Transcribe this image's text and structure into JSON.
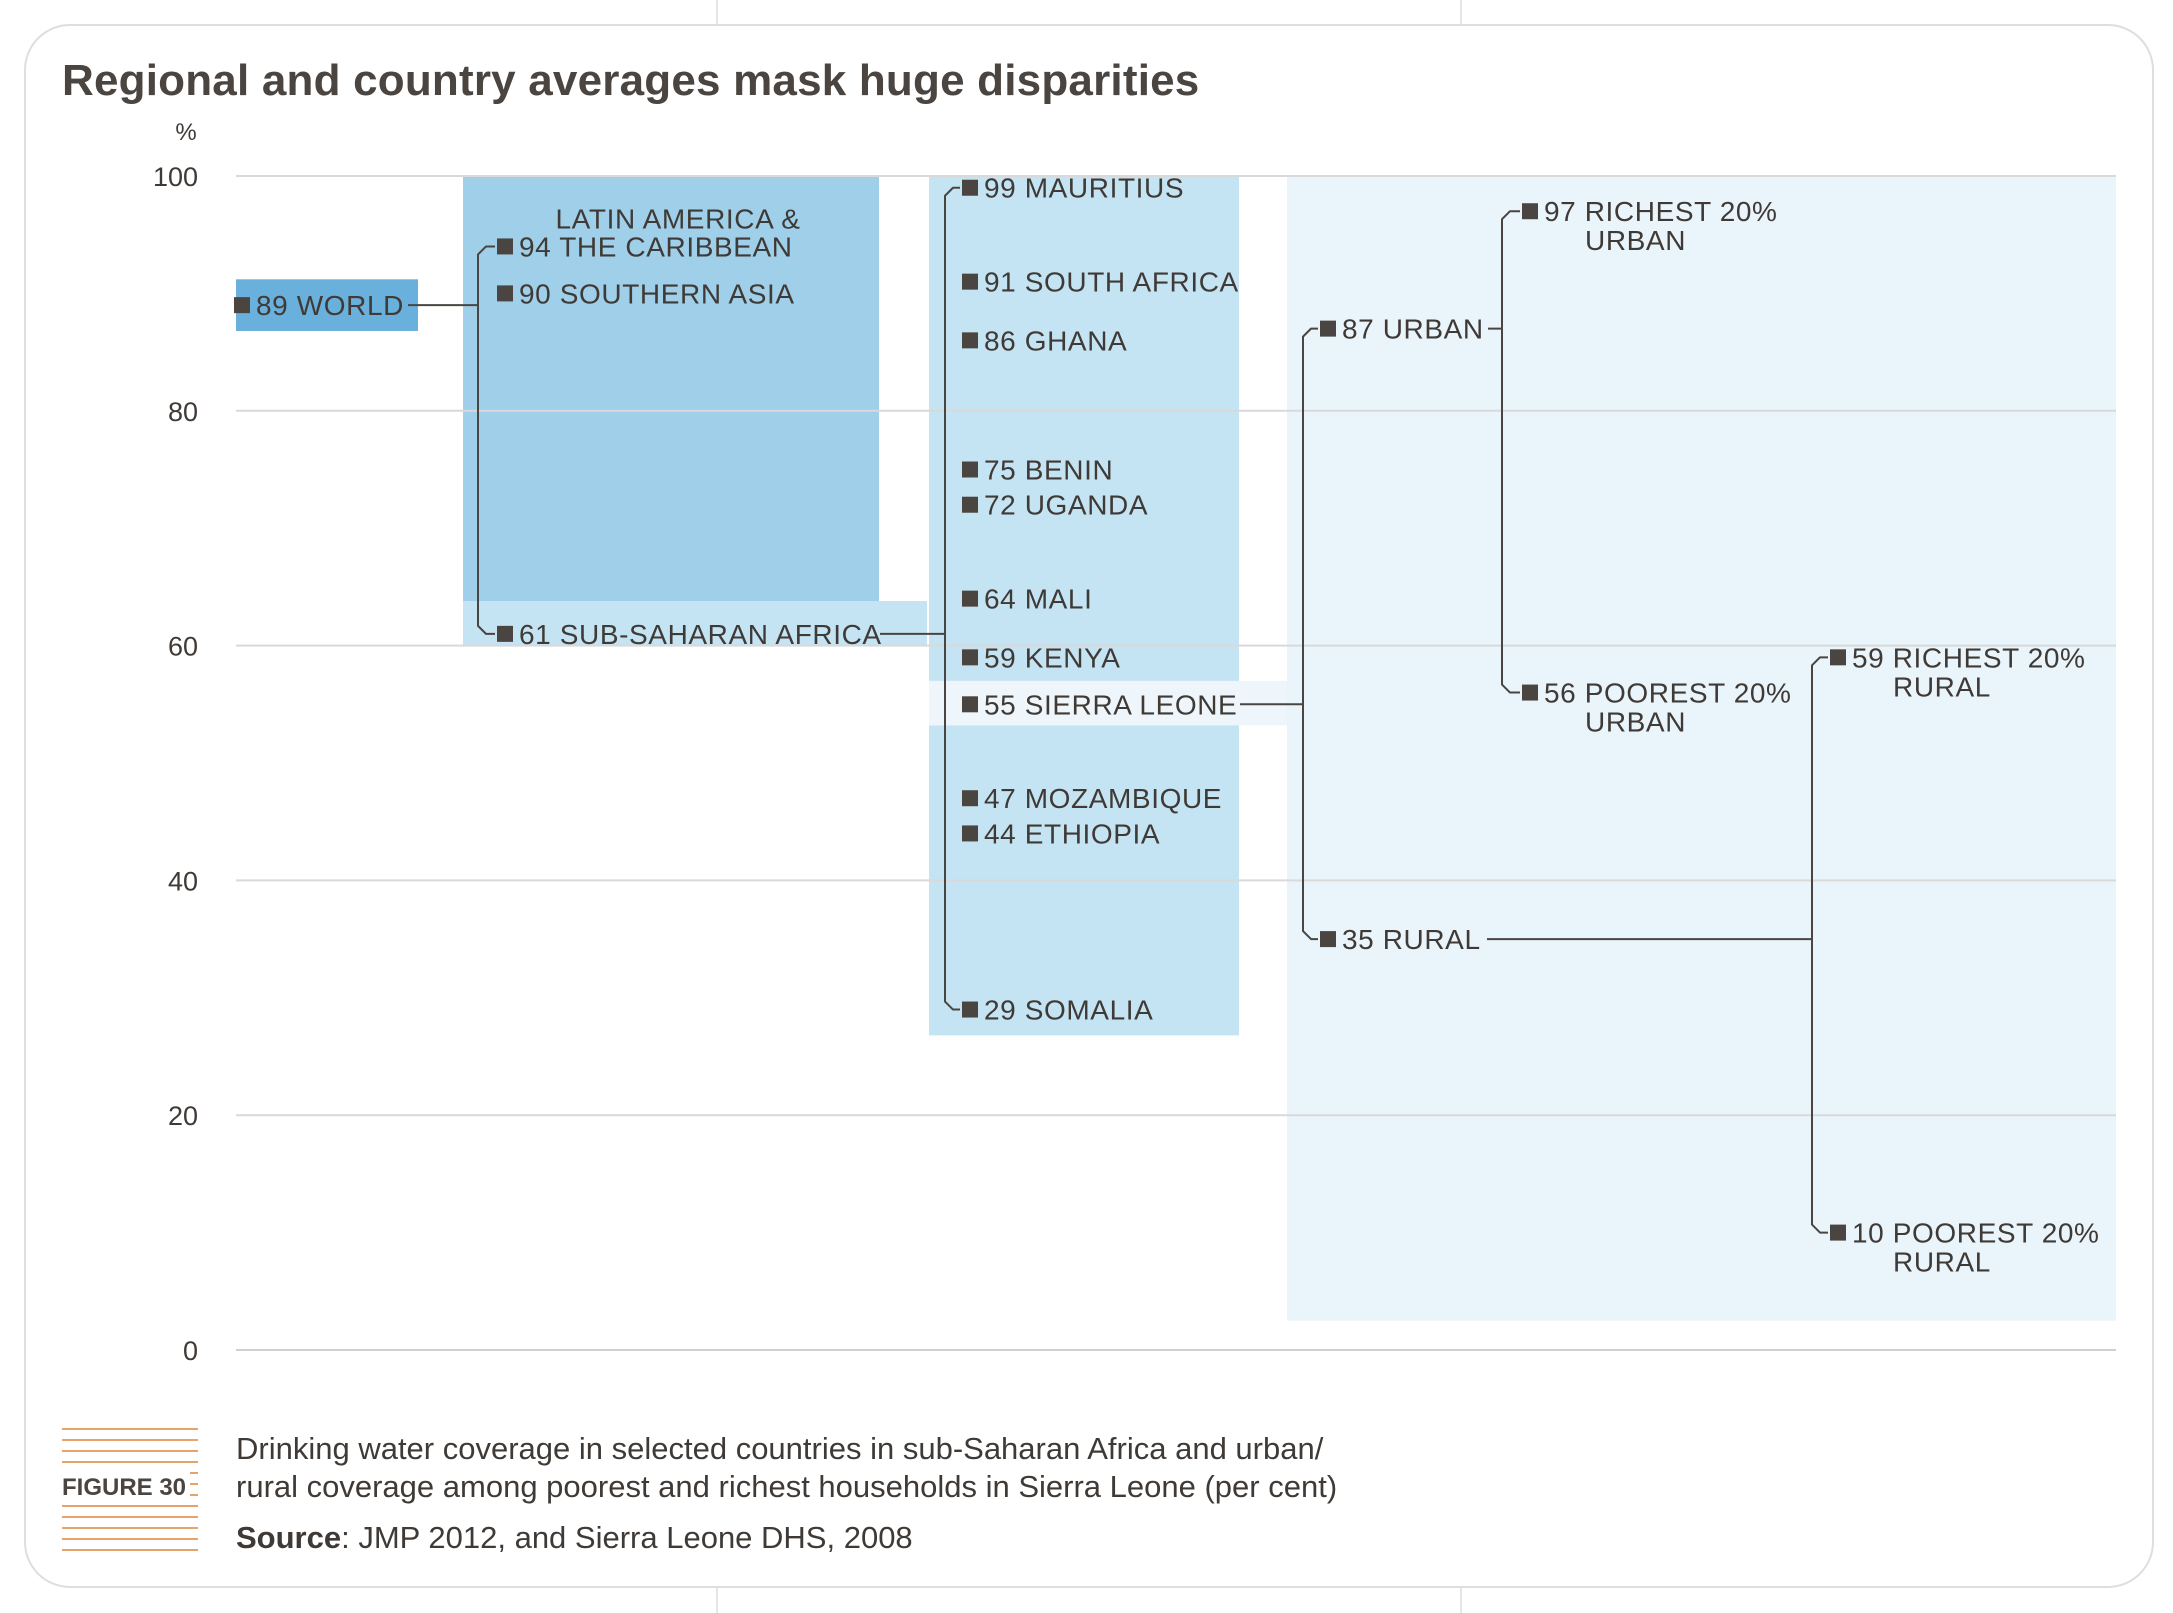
{
  "title": "Regional and country averages mask huge disparities",
  "caption": {
    "figure_label": "FIGURE 30",
    "line1": "Drinking water coverage in selected countries in sub-Saharan Africa and urban/",
    "line2": "rural coverage among poorest and richest households in Sierra Leone (per cent)",
    "source_label": "Source",
    "source_text": ": JMP 2012, and Sierra Leone DHS, 2008"
  },
  "chart_data": {
    "type": "tree-dot",
    "ylabel": "%",
    "ylim": [
      0,
      100
    ],
    "yticks": [
      0,
      20,
      40,
      60,
      80,
      100
    ],
    "grid": true,
    "colors": {
      "world": "#6ab0dc",
      "regions": "#9fcfe9",
      "sub_saharan": "#c4e3f3",
      "countries": "#c4e3f3",
      "sierra_leone": "#eef6fb",
      "breakdown": "#e9f4fb",
      "marker": "#4a4540",
      "connector": "#4a4540"
    },
    "columns": [
      {
        "name": "world",
        "items": [
          {
            "id": "world",
            "value": 89,
            "label": "WORLD"
          }
        ]
      },
      {
        "name": "regions",
        "items": [
          {
            "id": "lac",
            "value": 94,
            "label": "THE CARIBBEAN",
            "label_above": "LATIN AMERICA &"
          },
          {
            "id": "sasia",
            "value": 90,
            "label": "SOUTHERN ASIA"
          },
          {
            "id": "ssa",
            "value": 61,
            "label": "SUB-SAHARAN AFRICA"
          }
        ]
      },
      {
        "name": "countries",
        "items": [
          {
            "id": "mauritius",
            "value": 99,
            "label": "MAURITIUS"
          },
          {
            "id": "southafrica",
            "value": 91,
            "label": "SOUTH AFRICA"
          },
          {
            "id": "ghana",
            "value": 86,
            "label": "GHANA"
          },
          {
            "id": "benin",
            "value": 75,
            "label": "BENIN"
          },
          {
            "id": "uganda",
            "value": 72,
            "label": "UGANDA"
          },
          {
            "id": "mali",
            "value": 64,
            "label": "MALI"
          },
          {
            "id": "kenya",
            "value": 59,
            "label": "KENYA"
          },
          {
            "id": "sierraleone",
            "value": 55,
            "label": "SIERRA LEONE"
          },
          {
            "id": "mozambique",
            "value": 47,
            "label": "MOZAMBIQUE"
          },
          {
            "id": "ethiopia",
            "value": 44,
            "label": "ETHIOPIA"
          },
          {
            "id": "somalia",
            "value": 29,
            "label": "SOMALIA"
          }
        ]
      },
      {
        "name": "urban-rural",
        "items": [
          {
            "id": "urban",
            "value": 87,
            "label": "URBAN"
          },
          {
            "id": "rural",
            "value": 35,
            "label": "RURAL"
          }
        ]
      },
      {
        "name": "urban-quintiles",
        "items": [
          {
            "id": "urban_richest",
            "value": 97,
            "label": "RICHEST 20%",
            "label_below": "URBAN"
          },
          {
            "id": "urban_poorest",
            "value": 56,
            "label": "POOREST 20%",
            "label_below": "URBAN"
          }
        ]
      },
      {
        "name": "rural-quintiles",
        "items": [
          {
            "id": "rural_richest",
            "value": 59,
            "label": "RICHEST 20%",
            "label_below": "RURAL"
          },
          {
            "id": "rural_poorest",
            "value": 10,
            "label": "POOREST 20%",
            "label_below": "RURAL"
          }
        ]
      }
    ],
    "links": [
      {
        "from": "world",
        "to": [
          "lac",
          "ssa"
        ]
      },
      {
        "from": "ssa",
        "to": [
          "mauritius",
          "somalia"
        ]
      },
      {
        "from": "sierraleone",
        "to": [
          "urban",
          "rural"
        ]
      },
      {
        "from": "urban",
        "to": [
          "urban_richest",
          "urban_poorest"
        ]
      },
      {
        "from": "rural",
        "to": [
          "rural_richest",
          "rural_poorest"
        ]
      }
    ]
  }
}
